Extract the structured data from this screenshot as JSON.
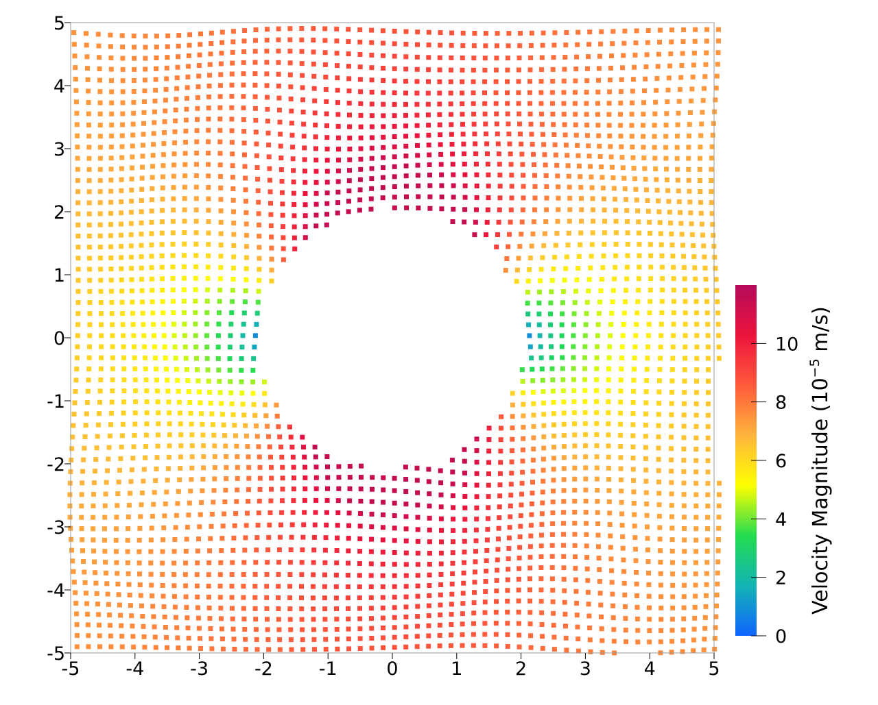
{
  "chart_data": {
    "type": "scatter",
    "xlabel": "",
    "ylabel": "",
    "xlim": [
      -5,
      5
    ],
    "ylim": [
      -5,
      5
    ],
    "xticks": [
      "-5",
      "-4",
      "-3",
      "-2",
      "-1",
      "0",
      "1",
      "2",
      "3",
      "4",
      "5"
    ],
    "yticks": [
      "-5",
      "-4",
      "-3",
      "-2",
      "-1",
      "0",
      "1",
      "2",
      "3",
      "4",
      "5"
    ],
    "grid": false,
    "field": {
      "description_of_points": "particles on a square domain with a circular hole; velocity magnitude of potential flow past a cylinder",
      "hole_center": [
        0,
        0
      ],
      "hole_radius": 2,
      "far_field_velocity": 7.5,
      "max_velocity": 11.5
    },
    "colorbar": {
      "label": "Velocity Magnitude (10^{-5} m/s)",
      "label_main": "Velocity Magnitude (10",
      "label_exp": "−5",
      "label_tail": " m/s)",
      "range": [
        0,
        12
      ],
      "ticks": [
        0,
        2,
        4,
        6,
        8,
        10
      ],
      "tick_labels": [
        "0",
        "2",
        "4",
        "6",
        "8",
        "10"
      ],
      "colormap": [
        "#0f64ff",
        "#14b4b4",
        "#23dc50",
        "#ffff00",
        "#ffb43c",
        "#ff5a3c",
        "#eb143c",
        "#b40a5a"
      ]
    }
  }
}
